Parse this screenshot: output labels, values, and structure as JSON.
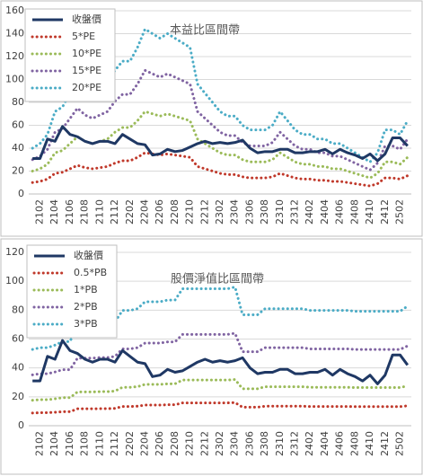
{
  "chart_data": [
    {
      "type": "line",
      "title": "本益比區間帶",
      "grid": true,
      "legend": "upper left",
      "categories": [
        null,
        "2102",
        null,
        "2104",
        null,
        "2106",
        null,
        "2108",
        null,
        "2110",
        null,
        "2112",
        null,
        "2202",
        null,
        "2204",
        null,
        "2206",
        null,
        "2208",
        null,
        "2210",
        null,
        "2212",
        null,
        "2302",
        null,
        "2304",
        null,
        "2306",
        null,
        "2308",
        null,
        "2310",
        null,
        "2312",
        null,
        "2402",
        null,
        "2404",
        null,
        "2406",
        null,
        "2408",
        null,
        "2410",
        null,
        "2412",
        null,
        "2502",
        null
      ],
      "ylim": [
        0,
        160
      ],
      "yticks": [
        0,
        20,
        40,
        60,
        80,
        100,
        120,
        140,
        160
      ],
      "series": [
        {
          "name": "收盤價",
          "color": "#1f3864",
          "style": "solid",
          "values": [
            31,
            31,
            48,
            46,
            59,
            52,
            50,
            46,
            44,
            46,
            46,
            44,
            52,
            48,
            44,
            43,
            34,
            35,
            39,
            37,
            38,
            41,
            44,
            46,
            44,
            45,
            44,
            45,
            47,
            40,
            36,
            37,
            37,
            39,
            39,
            36,
            36,
            37,
            37,
            39,
            35,
            39,
            36,
            34,
            31,
            35,
            29,
            35,
            49,
            49,
            42
          ]
        },
        {
          "name": "5*PE",
          "color": "#c0392b",
          "style": "dotted",
          "values": [
            10,
            11,
            13,
            18,
            19,
            22,
            25,
            23,
            22,
            23,
            24,
            27,
            29,
            29,
            32,
            36,
            35,
            34,
            35,
            34,
            33,
            32,
            24,
            22,
            20,
            18,
            17,
            17,
            15,
            14,
            14,
            14,
            15,
            18,
            16,
            14,
            13,
            13,
            12,
            12,
            11,
            11,
            10,
            9,
            8,
            7,
            9,
            14,
            14,
            13,
            16
          ]
        },
        {
          "name": "10*PE",
          "color": "#9bbb59",
          "style": "dotted",
          "values": [
            20,
            22,
            26,
            36,
            38,
            44,
            50,
            46,
            44,
            46,
            48,
            54,
            58,
            58,
            64,
            72,
            70,
            68,
            70,
            68,
            66,
            64,
            48,
            44,
            40,
            36,
            34,
            34,
            30,
            28,
            28,
            28,
            30,
            36,
            32,
            28,
            26,
            26,
            24,
            24,
            22,
            22,
            20,
            18,
            16,
            14,
            18,
            28,
            28,
            26,
            32
          ]
        },
        {
          "name": "15*PE",
          "color": "#8064a2",
          "style": "dotted",
          "values": [
            30,
            33,
            39,
            54,
            57,
            66,
            75,
            69,
            66,
            69,
            72,
            81,
            87,
            87,
            96,
            108,
            105,
            102,
            105,
            102,
            99,
            96,
            72,
            66,
            60,
            54,
            51,
            51,
            45,
            42,
            42,
            42,
            45,
            54,
            48,
            42,
            39,
            39,
            36,
            36,
            33,
            33,
            30,
            27,
            24,
            21,
            27,
            42,
            42,
            39,
            48
          ]
        },
        {
          "name": "20*PE",
          "color": "#4bacc6",
          "style": "dotted",
          "values": [
            40,
            44,
            52,
            72,
            76,
            88,
            100,
            92,
            88,
            92,
            96,
            108,
            116,
            116,
            128,
            144,
            140,
            136,
            140,
            136,
            132,
            128,
            96,
            88,
            80,
            72,
            68,
            68,
            60,
            56,
            56,
            56,
            60,
            72,
            64,
            56,
            52,
            52,
            48,
            48,
            44,
            44,
            40,
            36,
            32,
            28,
            36,
            56,
            56,
            52,
            64
          ]
        }
      ]
    },
    {
      "type": "line",
      "title": "股價淨值比區間帶",
      "grid": true,
      "legend": "upper left",
      "categories": [
        null,
        "2102",
        null,
        "2104",
        null,
        "2106",
        null,
        "2108",
        null,
        "2110",
        null,
        "2112",
        null,
        "2202",
        null,
        "2204",
        null,
        "2206",
        null,
        "2208",
        null,
        "2210",
        null,
        "2212",
        null,
        "2302",
        null,
        "2304",
        null,
        "2306",
        null,
        "2308",
        null,
        "2310",
        null,
        "2312",
        null,
        "2402",
        null,
        "2404",
        null,
        "2406",
        null,
        "2408",
        null,
        "2410",
        null,
        "2412",
        null,
        "2502",
        null
      ],
      "ylim": [
        0,
        120
      ],
      "yticks": [
        0,
        20,
        40,
        60,
        80,
        100,
        120
      ],
      "series": [
        {
          "name": "收盤價",
          "color": "#1f3864",
          "style": "solid",
          "values": [
            31,
            31,
            48,
            46,
            59,
            52,
            50,
            46,
            44,
            46,
            46,
            44,
            52,
            48,
            44,
            43,
            34,
            35,
            39,
            37,
            38,
            41,
            44,
            46,
            44,
            45,
            44,
            45,
            47,
            40,
            36,
            37,
            37,
            39,
            39,
            36,
            36,
            37,
            37,
            39,
            35,
            39,
            36,
            34,
            31,
            35,
            29,
            35,
            49,
            49,
            42
          ]
        },
        {
          "name": "0.5*PB",
          "color": "#c0392b",
          "style": "dotted",
          "values": [
            8.8,
            9.0,
            9.0,
            9.3,
            9.7,
            9.7,
            11.7,
            11.7,
            11.7,
            11.8,
            11.8,
            12.0,
            13.3,
            13.3,
            13.5,
            14.3,
            14.3,
            14.3,
            14.5,
            14.5,
            15.8,
            15.8,
            15.8,
            15.8,
            15.8,
            15.8,
            15.8,
            16.0,
            12.8,
            12.8,
            12.8,
            13.5,
            13.5,
            13.5,
            13.5,
            13.5,
            13.5,
            13.3,
            13.3,
            13.3,
            13.3,
            13.3,
            13.3,
            13.2,
            13.2,
            13.2,
            13.2,
            13.2,
            13.2,
            13.2,
            13.8
          ]
        },
        {
          "name": "1*PB",
          "color": "#9bbb59",
          "style": "dotted",
          "values": [
            17.6,
            18,
            18,
            18.6,
            19.4,
            19.4,
            23.4,
            23.4,
            23.4,
            23.6,
            23.6,
            24,
            26.6,
            26.6,
            27,
            28.6,
            28.6,
            28.6,
            29,
            29,
            31.6,
            31.6,
            31.6,
            31.6,
            31.6,
            31.6,
            31.6,
            32,
            25.6,
            25.6,
            25.6,
            27,
            27,
            27,
            27,
            27,
            27,
            26.6,
            26.6,
            26.6,
            26.6,
            26.6,
            26.6,
            26.4,
            26.4,
            26.4,
            26.4,
            26.4,
            26.4,
            26.4,
            27.6
          ]
        },
        {
          "name": "2*PB",
          "color": "#8064a2",
          "style": "dotted",
          "values": [
            35.2,
            36,
            36,
            37.2,
            38.8,
            38.8,
            46.8,
            46.8,
            46.8,
            47.2,
            47.2,
            48,
            53.2,
            53.2,
            54,
            57.2,
            57.2,
            57.2,
            58,
            58,
            63.2,
            63.2,
            63.2,
            63.2,
            63.2,
            63.2,
            63.2,
            64,
            51.2,
            51.2,
            51.2,
            54,
            54,
            54,
            54,
            54,
            54,
            53.2,
            53.2,
            53.2,
            53.2,
            53.2,
            53.2,
            52.8,
            52.8,
            52.8,
            52.8,
            52.8,
            52.8,
            52.8,
            55.2
          ]
        },
        {
          "name": "3*PB",
          "color": "#4bacc6",
          "style": "dotted",
          "values": [
            52.8,
            54,
            54,
            55.8,
            58.2,
            58.2,
            70.2,
            70.2,
            70.2,
            70.8,
            70.8,
            72,
            79.8,
            79.8,
            81,
            85.8,
            85.8,
            85.8,
            87,
            87,
            94.8,
            94.8,
            94.8,
            94.8,
            94.8,
            94.8,
            94.8,
            96,
            76.8,
            76.8,
            76.8,
            81,
            81,
            81,
            81,
            81,
            81,
            79.8,
            79.8,
            79.8,
            79.8,
            79.8,
            79.8,
            79.2,
            79.2,
            79.2,
            79.2,
            79.2,
            79.2,
            79.2,
            82.8
          ]
        }
      ]
    }
  ]
}
